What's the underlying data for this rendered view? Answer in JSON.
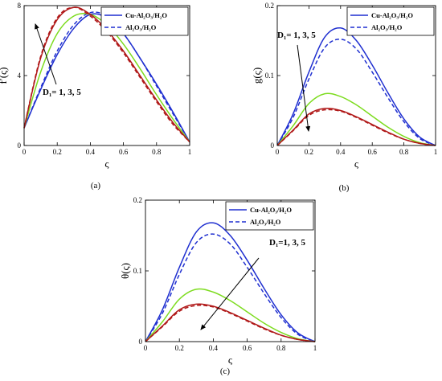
{
  "chart_data": [
    {
      "type": "line",
      "caption": "(a)",
      "xlabel": "ς",
      "ylabel": "f′(ς)",
      "xlim": [
        0,
        1
      ],
      "ylim": [
        0,
        8
      ],
      "xticks": [
        "0",
        "0.2",
        "0.4",
        "0.6",
        "0.8",
        "1"
      ],
      "yticks": [
        "0",
        "4",
        "8"
      ],
      "annotation": "D₁= 1, 3, 5",
      "legend": [
        "Cu-Al₂O₃/H₂O",
        "Al₂O₃/H₂O"
      ],
      "legend_position": "top-right",
      "series": [
        {
          "color": "#1f2fd0",
          "style": "solid",
          "x": [
            0,
            0.1,
            0.2,
            0.3,
            0.4,
            0.5,
            0.6,
            0.7,
            0.8,
            0.9,
            1
          ],
          "y": [
            1,
            3.2,
            5.2,
            6.7,
            7.5,
            7.3,
            6.4,
            5,
            3.5,
            1.9,
            0.2
          ]
        },
        {
          "color": "#1f2fd0",
          "style": "dashed",
          "x": [
            0,
            0.1,
            0.2,
            0.3,
            0.4,
            0.5,
            0.6,
            0.7,
            0.8,
            0.9,
            1
          ],
          "y": [
            1,
            3.3,
            5.4,
            6.9,
            7.6,
            7.4,
            6.4,
            5,
            3.4,
            1.8,
            0.2
          ]
        },
        {
          "color": "#7ddc1f",
          "style": "solid",
          "x": [
            0,
            0.1,
            0.2,
            0.3,
            0.4,
            0.5,
            0.6,
            0.7,
            0.8,
            0.9,
            1
          ],
          "y": [
            1,
            4.2,
            6.4,
            7.4,
            7.5,
            6.9,
            5.8,
            4.4,
            2.9,
            1.5,
            0.2
          ]
        },
        {
          "color": "#b01818",
          "style": "solid",
          "x": [
            0,
            0.1,
            0.2,
            0.3,
            0.4,
            0.5,
            0.6,
            0.7,
            0.8,
            0.9,
            1
          ],
          "y": [
            1,
            5,
            7.2,
            7.9,
            7.5,
            6.6,
            5.4,
            4,
            2.6,
            1.3,
            0.2
          ]
        },
        {
          "color": "#b01818",
          "style": "dashed",
          "x": [
            0,
            0.1,
            0.2,
            0.3,
            0.4,
            0.5,
            0.6,
            0.7,
            0.8,
            0.9,
            1
          ],
          "y": [
            1,
            5.1,
            7.3,
            7.9,
            7.4,
            6.5,
            5.3,
            3.9,
            2.5,
            1.2,
            0.2
          ]
        }
      ]
    },
    {
      "type": "line",
      "caption": "(b)",
      "xlabel": "ς",
      "ylabel": "g(ς)",
      "xlim": [
        0,
        1
      ],
      "ylim": [
        0,
        0.2
      ],
      "xticks": [
        "0",
        "0.2",
        "0.4",
        "0.6",
        "0.8",
        "1"
      ],
      "yticks": [
        "0",
        "0.1",
        "0.2"
      ],
      "annotation": "D₁= 1, 3, 5",
      "legend": [
        "Cu-Al₂O₃/H₂O",
        "Al₂O₃/H₂O"
      ],
      "legend_position": "top-right",
      "series": [
        {
          "color": "#1f2fd0",
          "style": "solid",
          "x": [
            0,
            0.1,
            0.2,
            0.3,
            0.4,
            0.5,
            0.6,
            0.7,
            0.8,
            0.9,
            1
          ],
          "y": [
            0,
            0.045,
            0.105,
            0.155,
            0.168,
            0.15,
            0.115,
            0.075,
            0.038,
            0.012,
            0
          ]
        },
        {
          "color": "#1f2fd0",
          "style": "dashed",
          "x": [
            0,
            0.1,
            0.2,
            0.3,
            0.4,
            0.5,
            0.6,
            0.7,
            0.8,
            0.9,
            1
          ],
          "y": [
            0,
            0.04,
            0.095,
            0.14,
            0.152,
            0.138,
            0.105,
            0.068,
            0.034,
            0.01,
            0
          ]
        },
        {
          "color": "#7ddc1f",
          "style": "solid",
          "x": [
            0,
            0.1,
            0.2,
            0.3,
            0.4,
            0.5,
            0.6,
            0.7,
            0.8,
            0.9,
            1
          ],
          "y": [
            0,
            0.028,
            0.06,
            0.074,
            0.07,
            0.058,
            0.042,
            0.026,
            0.013,
            0.004,
            0
          ]
        },
        {
          "color": "#b01818",
          "style": "solid",
          "x": [
            0,
            0.1,
            0.2,
            0.3,
            0.4,
            0.5,
            0.6,
            0.7,
            0.8,
            0.9,
            1
          ],
          "y": [
            0,
            0.022,
            0.045,
            0.053,
            0.05,
            0.041,
            0.03,
            0.019,
            0.009,
            0.003,
            0
          ]
        },
        {
          "color": "#b01818",
          "style": "dashed",
          "x": [
            0,
            0.1,
            0.2,
            0.3,
            0.4,
            0.5,
            0.6,
            0.7,
            0.8,
            0.9,
            1
          ],
          "y": [
            0,
            0.021,
            0.043,
            0.051,
            0.049,
            0.04,
            0.029,
            0.018,
            0.009,
            0.003,
            0
          ]
        }
      ]
    },
    {
      "type": "line",
      "caption": "(c)",
      "xlabel": "ς",
      "ylabel": "θ(ς)",
      "xlim": [
        0,
        1
      ],
      "ylim": [
        0,
        0.2
      ],
      "xticks": [
        "0",
        "0.2",
        "0.4",
        "0.6",
        "0.8",
        "1"
      ],
      "yticks": [
        "0",
        "0.1",
        "0.2"
      ],
      "annotation": "D₁=1, 3, 5",
      "legend": [
        "Cu-Al₂O₃/H₂O",
        "Al₂O₃/H₂O"
      ],
      "legend_position": "top-right",
      "series": [
        {
          "color": "#1f2fd0",
          "style": "solid",
          "x": [
            0,
            0.1,
            0.2,
            0.3,
            0.4,
            0.5,
            0.6,
            0.7,
            0.8,
            0.9,
            1
          ],
          "y": [
            0,
            0.045,
            0.105,
            0.155,
            0.168,
            0.15,
            0.115,
            0.075,
            0.038,
            0.012,
            0
          ]
        },
        {
          "color": "#1f2fd0",
          "style": "dashed",
          "x": [
            0,
            0.1,
            0.2,
            0.3,
            0.4,
            0.5,
            0.6,
            0.7,
            0.8,
            0.9,
            1
          ],
          "y": [
            0,
            0.04,
            0.095,
            0.14,
            0.152,
            0.138,
            0.105,
            0.068,
            0.034,
            0.01,
            0
          ]
        },
        {
          "color": "#7ddc1f",
          "style": "solid",
          "x": [
            0,
            0.1,
            0.2,
            0.3,
            0.4,
            0.5,
            0.6,
            0.7,
            0.8,
            0.9,
            1
          ],
          "y": [
            0,
            0.028,
            0.06,
            0.074,
            0.07,
            0.058,
            0.042,
            0.026,
            0.013,
            0.004,
            0
          ]
        },
        {
          "color": "#b01818",
          "style": "solid",
          "x": [
            0,
            0.1,
            0.2,
            0.3,
            0.4,
            0.5,
            0.6,
            0.7,
            0.8,
            0.9,
            1
          ],
          "y": [
            0,
            0.022,
            0.045,
            0.053,
            0.05,
            0.041,
            0.03,
            0.019,
            0.009,
            0.003,
            0
          ]
        },
        {
          "color": "#b01818",
          "style": "dashed",
          "x": [
            0,
            0.1,
            0.2,
            0.3,
            0.4,
            0.5,
            0.6,
            0.7,
            0.8,
            0.9,
            1
          ],
          "y": [
            0,
            0.021,
            0.043,
            0.051,
            0.049,
            0.04,
            0.029,
            0.018,
            0.009,
            0.003,
            0
          ]
        }
      ]
    }
  ]
}
